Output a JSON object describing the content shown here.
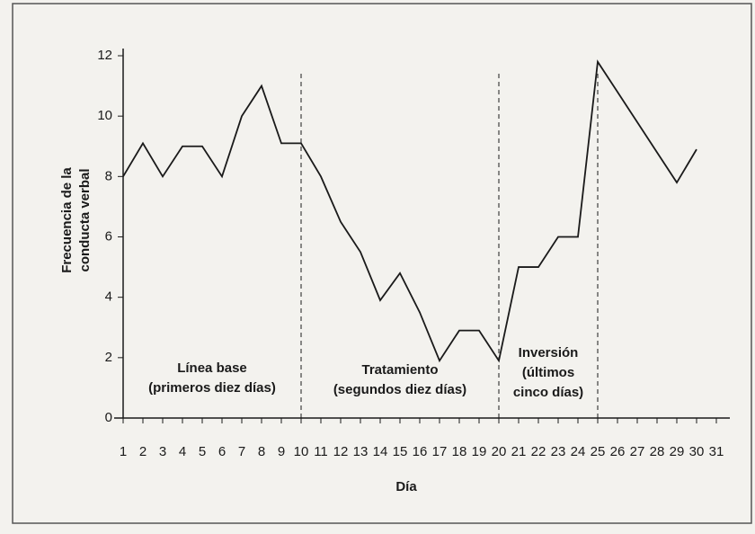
{
  "chart_data": {
    "type": "line",
    "y_label_lines": [
      "Frecuencia de la",
      "conducta verbal"
    ],
    "x_label": "Día",
    "x": [
      1,
      2,
      3,
      4,
      5,
      6,
      7,
      8,
      9,
      10,
      11,
      12,
      13,
      14,
      15,
      16,
      17,
      18,
      19,
      20,
      21,
      22,
      23,
      24,
      25,
      26,
      27,
      28,
      29,
      30,
      31
    ],
    "series": [
      {
        "color": "#1a1a1a",
        "values": [
          8,
          9.1,
          8,
          9,
          9,
          8,
          10,
          11,
          9.1,
          9.1,
          8,
          6.5,
          5.5,
          3.9,
          4.8,
          3.5,
          1.9,
          2.9,
          2.9,
          1.9,
          5,
          5,
          6,
          6,
          11.8,
          10.8,
          9.8,
          8.8,
          7.8,
          8.9,
          null
        ]
      }
    ],
    "xlim": [
      1,
      31
    ],
    "ylim": [
      0,
      12
    ],
    "yticks": [
      0,
      2,
      4,
      6,
      8,
      10,
      12
    ],
    "phase_lines": [
      10,
      20,
      25
    ],
    "phases": [
      {
        "lines": [
          "Línea base",
          "(primeros diez días)"
        ]
      },
      {
        "lines": [
          "Tratamiento",
          "(segundos diez días)"
        ]
      },
      {
        "lines": [
          "Inversión",
          "(últimos",
          "cinco días)"
        ]
      }
    ]
  }
}
